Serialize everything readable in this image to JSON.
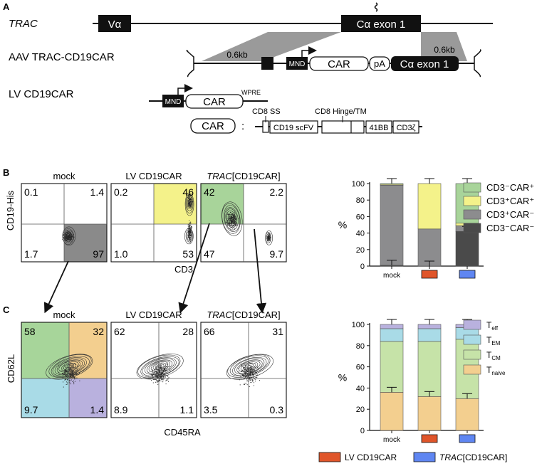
{
  "panel_a": {
    "label": "A",
    "trac": {
      "label": "TRAC",
      "va": "Vα",
      "ca": "Cα exon 1"
    },
    "aav": {
      "label": "AAV TRAC-CD19CAR",
      "left_arm": "0.6kb",
      "right_arm": "0.6kb",
      "mnd": "MND",
      "car": "CAR",
      "pa": "pA",
      "ca": "Cα exon 1"
    },
    "lv": {
      "label": "LV CD19CAR",
      "mnd": "MND",
      "car": "CAR",
      "wpre": "WPRE"
    },
    "car_construct": {
      "car": "CAR",
      "colon": ":",
      "ss": "CD8 SS",
      "hinge": "CD8 Hinge/TM",
      "scfv": "CD19 scFV",
      "bb": "41BB",
      "cd3z": "CD3ζ"
    }
  },
  "panel_b": {
    "label": "B",
    "y_axis": "CD19-His",
    "x_axis": "CD3",
    "plots": [
      {
        "title": "mock",
        "q": [
          "0.1",
          "1.4",
          "1.7",
          "97"
        ],
        "gate_color": "#8a8a8a"
      },
      {
        "title": "LV CD19CAR",
        "q": [
          "0.2",
          "46",
          "1.0",
          "53"
        ],
        "gate_color": "#f4f28a"
      },
      {
        "title": "[CD19CAR]",
        "title_italic": "TRAC",
        "q": [
          "42",
          "2.2",
          "47",
          "9.7"
        ],
        "gate_color": "#a8d49a"
      }
    ]
  },
  "panel_c": {
    "label": "C",
    "y_axis": "CD62L",
    "x_axis": "CD45RA",
    "plots": [
      {
        "title": "mock",
        "q": [
          "58",
          "32",
          "9.7",
          "1.4"
        ]
      },
      {
        "title": "LV CD19CAR",
        "q": [
          "62",
          "28",
          "8.9",
          "1.1"
        ]
      },
      {
        "title": "[CD19CAR]",
        "title_italic": "TRAC",
        "q": [
          "66",
          "31",
          "3.5",
          "0.3"
        ]
      }
    ],
    "quadrant_colors": {
      "tl": "#a7d59a",
      "tr": "#f3cf8f",
      "bl": "#a9dbe7",
      "br": "#b9b1de"
    }
  },
  "chart_data": [
    {
      "type": "bar",
      "stacked": true,
      "categories": [
        "mock",
        "LV CD19CAR",
        "TRAC[CD19CAR]"
      ],
      "tick_labels": [
        "mock",
        "",
        ""
      ],
      "ylabel": "%",
      "ylim": [
        0,
        100
      ],
      "yticks": [
        "0",
        "20",
        "40",
        "60",
        "80",
        "100"
      ],
      "series": [
        {
          "name": "CD3⁻CAR⁻",
          "color": "#4a4a4a",
          "values": [
            1,
            0,
            42
          ]
        },
        {
          "name": "CD3⁺CAR⁻",
          "color": "#8c8c8e",
          "values": [
            97,
            45,
            7
          ]
        },
        {
          "name": "CD3⁺CAR⁺",
          "color": "#f4f28a",
          "values": [
            1,
            55,
            3
          ]
        },
        {
          "name": "CD3⁻CAR⁺",
          "color": "#a8d49a",
          "values": [
            1,
            0,
            48
          ]
        }
      ],
      "legend_order": [
        "CD3⁻CAR⁺",
        "CD3⁺CAR⁺",
        "CD3⁺CAR⁻",
        "CD3⁻CAR⁻"
      ]
    },
    {
      "type": "bar",
      "stacked": true,
      "categories": [
        "mock",
        "LV CD19CAR",
        "TRAC[CD19CAR]"
      ],
      "tick_labels": [
        "mock",
        "",
        ""
      ],
      "ylabel": "%",
      "ylim": [
        0,
        100
      ],
      "yticks": [
        "0",
        "20",
        "40",
        "60",
        "80",
        "100"
      ],
      "series": [
        {
          "name": "T",
          "sub": "naive",
          "color": "#f3cf8f",
          "values": [
            36,
            32,
            30
          ]
        },
        {
          "name": "T",
          "sub": "CM",
          "color": "#c6e3a8",
          "values": [
            48,
            52,
            56
          ]
        },
        {
          "name": "T",
          "sub": "EM",
          "color": "#a9dbe7",
          "values": [
            12,
            12,
            11
          ]
        },
        {
          "name": "T",
          "sub": "eff",
          "color": "#b9b1de",
          "values": [
            4,
            4,
            3
          ]
        }
      ],
      "legend_order": [
        "eff",
        "EM",
        "CM",
        "naive"
      ]
    }
  ],
  "bottom_legend": {
    "items": [
      {
        "label": "LV CD19CAR",
        "color": "#e0552a"
      },
      {
        "label": "[CD19CAR]",
        "italic": "TRAC",
        "color": "#5f86f2"
      }
    ]
  }
}
